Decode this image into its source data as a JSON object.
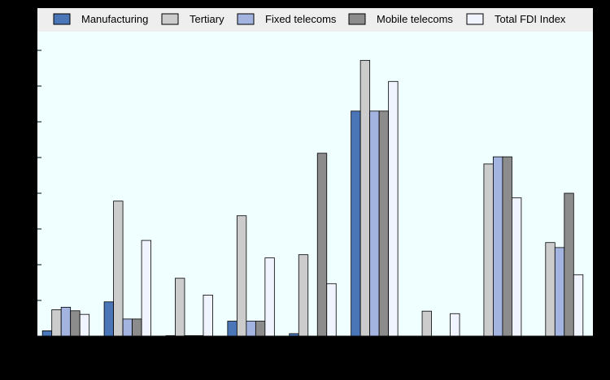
{
  "chart_data": {
    "type": "bar",
    "categories": [
      "",
      "",
      "",
      "",
      "",
      "",
      "",
      "",
      ""
    ],
    "series": [
      {
        "name": "Manufacturing",
        "color": "#4a76b8",
        "values": [
          0.015,
          0.096,
          0.0015,
          0.042,
          0.007,
          0.63,
          0.0,
          0.0,
          0.0
        ]
      },
      {
        "name": "Tertiary",
        "color": "#cccccc",
        "values": [
          0.074,
          0.378,
          0.162,
          0.337,
          0.228,
          0.772,
          0.07,
          0.482,
          0.262
        ]
      },
      {
        "name": "Fixed telecoms",
        "color": "#a3b4e0",
        "values": [
          0.081,
          0.048,
          0.0015,
          0.042,
          0.0,
          0.63,
          0.0,
          0.502,
          0.248
        ]
      },
      {
        "name": "Mobile telecoms",
        "color": "#8c8c8c",
        "values": [
          0.071,
          0.048,
          0.0015,
          0.042,
          0.512,
          0.63,
          0.0,
          0.502,
          0.4
        ]
      },
      {
        "name": "Total FDI Index",
        "color": "#f0f4ff",
        "values": [
          0.061,
          0.268,
          0.115,
          0.219,
          0.147,
          0.713,
          0.063,
          0.387,
          0.172
        ]
      }
    ],
    "ylim": [
      0,
      0.8
    ],
    "yticks": [
      0,
      0.1,
      0.2,
      0.3,
      0.4,
      0.5,
      0.6,
      0.7,
      0.8
    ],
    "grid": false,
    "legend": "top",
    "colors": {
      "background": "#000000",
      "plot_area": "#f0ffff",
      "legend_area": "#eeeeee"
    }
  }
}
